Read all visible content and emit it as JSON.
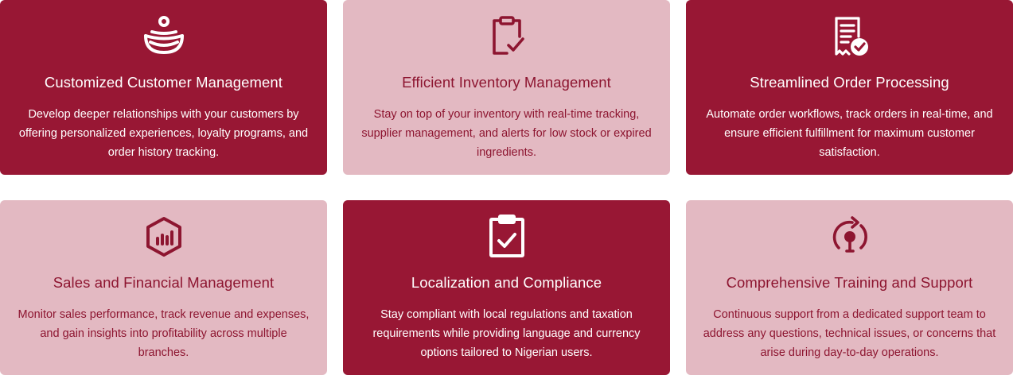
{
  "colors": {
    "dark_card": "#981734",
    "light_card": "#e3b9c2",
    "light_text": "#8d1530",
    "dark_text": "#ffffff"
  },
  "cards": [
    {
      "icon": "bowl-icon",
      "title": "Customized Customer Management",
      "description": "Develop deeper relationships with your customers by offering personalized experiences, loyalty programs, and order history tracking."
    },
    {
      "icon": "clipboard-check-icon",
      "title": "Efficient Inventory Management",
      "description": "Stay on top of your inventory with real-time tracking, supplier management, and alerts for low stock or expired ingredients."
    },
    {
      "icon": "receipt-check-icon",
      "title": "Streamlined Order Processing",
      "description": "Automate order workflows, track orders in real-time, and ensure efficient fulfillment for maximum customer satisfaction."
    },
    {
      "icon": "hexagon-chart-icon",
      "title": "Sales and Financial Management",
      "description": "Monitor sales performance, track revenue and expenses, and gain insights into profitability across multiple branches."
    },
    {
      "icon": "clipboard-checkbox-icon",
      "title": "Localization and Compliance",
      "description": "Stay compliant with local regulations and taxation requirements while providing language and currency options tailored to Nigerian users."
    },
    {
      "icon": "support-lightbulb-icon",
      "title": "Comprehensive Training and Support",
      "description": "Continuous support from a dedicated support team to address any questions, technical issues, or concerns that arise during day-to-day operations."
    }
  ]
}
